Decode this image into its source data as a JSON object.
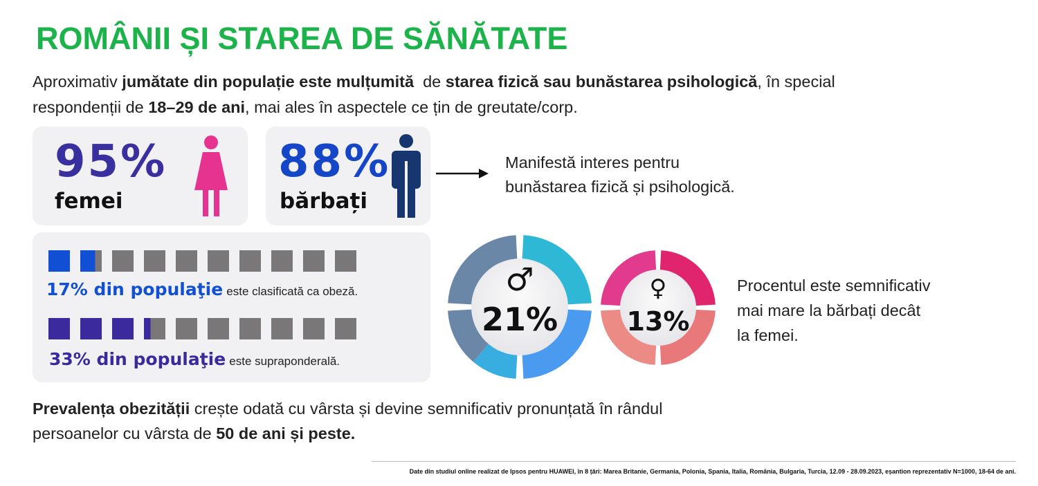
{
  "title": "ROMÂNII ȘI STAREA DE SĂNĂTATE",
  "intro": {
    "t1": "Aproximativ ",
    "b1": "jumătate din populație este mulțumită",
    "t2": "  de ",
    "b2": "starea fizică sau bunăstarea psihologică",
    "t3": ", în special respondenții de ",
    "b3": "18–29 de ani",
    "t4": ", mai ales în aspectele ce țin de greutate/corp."
  },
  "women": {
    "percent": "95%",
    "label": "femei",
    "color": "#3a2f9e",
    "icon": "female-figure-icon",
    "icon_color": "#e6338f"
  },
  "men": {
    "percent": "88%",
    "label": "bărbați",
    "color": "#1546c8",
    "icon": "male-figure-icon",
    "icon_color": "#17356e"
  },
  "interest_text": {
    "line1": "Manifestă interes pentru",
    "line2": "bunăstarea fizică și psihologică."
  },
  "obesity": {
    "percent_label": "17% din populaţie",
    "rest": "este clasificată ca obeză.",
    "color": "#1150d4",
    "fill_fraction": 0.17
  },
  "overweight": {
    "percent_label": "33% din populaţie",
    "rest": "este supraponderală.",
    "color": "#3a2a9e",
    "fill_fraction": 0.33
  },
  "donut_male": {
    "symbol": "♂",
    "value": "21%"
  },
  "donut_female": {
    "symbol": "♀",
    "value": "13%"
  },
  "comparison": {
    "line1": "Procentul este semnificativ",
    "line2": "mai mare la bărbați decât",
    "line3": "la femei."
  },
  "prevalence": {
    "b1": "Prevalența obezității",
    "t1": " crește odată cu vârsta și devine semnificativ pronunțată în rândul persoanelor cu vârsta de ",
    "b2": "50 de ani și peste."
  },
  "footnote": "Date din studiul online realizat de Ipsos pentru HUAWEI, în 8 țări: Marea Britanie, Germania, Polonia, Spania, Italia, România, Bulgaria, Turcia, 12.09 - 28.09.2023, eșantion reprezentativ N=1000, 18-64 de ani."
}
